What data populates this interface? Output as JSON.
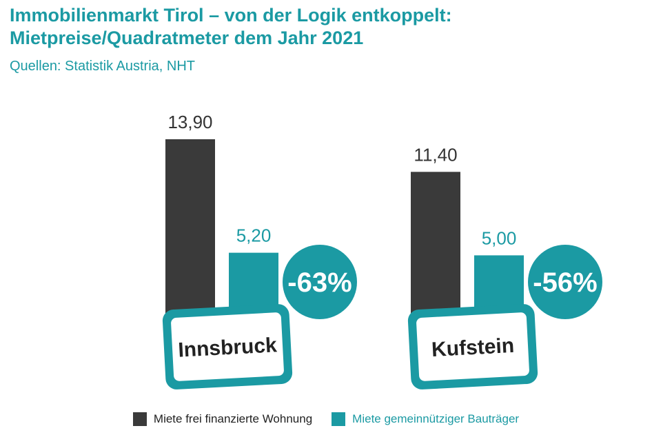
{
  "title": {
    "line1": "Immobilienmarkt Tirol – von der Logik entkoppelt:",
    "line2": "Mietpreise/Quadratmeter dem Jahr 2021"
  },
  "subtitle": "Quellen: Statistik Austria, NHT",
  "colors": {
    "dark": "#3a3a3a",
    "teal": "#1b9aa3"
  },
  "legend": [
    {
      "label": "Miete frei finanzierte Wohnung",
      "color": "#3a3a3a",
      "text_color": "#222222"
    },
    {
      "label": "Miete gemeinnütziger Bauträger",
      "color": "#1b9aa3",
      "text_color": "#1b9aa3"
    }
  ],
  "chart_data": {
    "type": "bar",
    "categories": [
      "Innsbruck",
      "Kufstein"
    ],
    "series": [
      {
        "name": "Miete frei finanzierte Wohnung",
        "values": [
          13.9,
          11.4
        ],
        "labels": [
          "13,90",
          "11,40"
        ]
      },
      {
        "name": "Miete gemeinnütziger Bauträger",
        "values": [
          5.2,
          5.0
        ],
        "labels": [
          "5,20",
          "5,00"
        ]
      }
    ],
    "differences": [
      "-63%",
      "-56%"
    ],
    "ylim": [
      0,
      14
    ]
  }
}
